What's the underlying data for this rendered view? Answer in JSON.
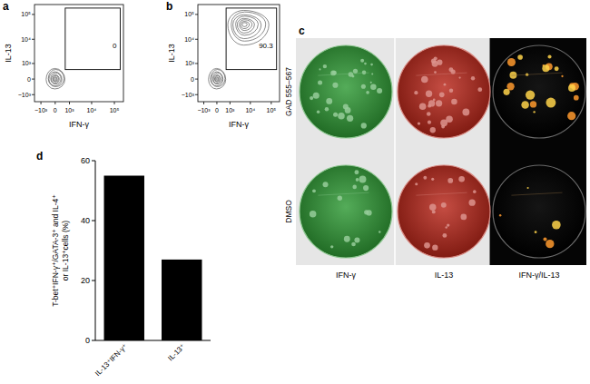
{
  "chart_data": [
    {
      "type": "contour",
      "title": "a",
      "xlabel": "IFN-γ",
      "ylabel": "IL-13",
      "xlim": [
        -2000,
        250000
      ],
      "ylim": [
        -2000,
        250000
      ],
      "xticks": [
        {
          "value": -1000,
          "label": "−10³"
        },
        0,
        {
          "value": 1000,
          "label": "10³"
        },
        {
          "value": 10000,
          "label": "10⁴"
        },
        {
          "value": 100000,
          "label": "10⁵"
        }
      ],
      "yticks": [
        {
          "value": -1000,
          "label": "−10³"
        },
        0,
        {
          "value": 1000,
          "label": "10³"
        },
        {
          "value": 10000,
          "label": "10⁴"
        },
        {
          "value": 100000,
          "label": "10⁵"
        }
      ],
      "populations": [
        {
          "x": 0,
          "y": 0,
          "x_range": [
            -500,
            600
          ],
          "y_range": [
            -500,
            600
          ]
        }
      ],
      "gate": {
        "x": [
          600,
          180000
        ],
        "y": [
          500,
          180000
        ],
        "value": 0
      }
    },
    {
      "type": "contour",
      "title": "b",
      "xlabel": "IFN-γ",
      "ylabel": "IL-13",
      "xlim": [
        -2000,
        250000
      ],
      "ylim": [
        -2000,
        250000
      ],
      "xticks": [
        {
          "value": -1000,
          "label": "−10³"
        },
        0,
        {
          "value": 1000,
          "label": "10³"
        },
        {
          "value": 10000,
          "label": "10⁴"
        },
        {
          "value": 100000,
          "label": "10⁵"
        }
      ],
      "yticks": [
        {
          "value": -1000,
          "label": "−10³"
        },
        0,
        {
          "value": 1000,
          "label": "10³"
        },
        {
          "value": 10000,
          "label": "10⁴"
        },
        {
          "value": 100000,
          "label": "10⁵"
        }
      ],
      "populations": [
        {
          "x": 5000,
          "y": 40000,
          "x_range": [
            800,
            80000
          ],
          "y_range": [
            6000,
            150000
          ]
        },
        {
          "x": 0,
          "y": 0,
          "x_range": [
            -500,
            600
          ],
          "y_range": [
            -500,
            600
          ]
        }
      ],
      "gate": {
        "x": [
          600,
          180000
        ],
        "y": [
          500,
          180000
        ],
        "value": 90.3
      }
    },
    {
      "type": "bar",
      "title": "d",
      "ylabel": [
        "T-bet⁺IFN-γ⁺/GATA-3⁺ and IL-4⁺",
        "or IL-13⁺cells (%)"
      ],
      "categories": [
        "IL-13⁺IFN-γ⁺",
        "IL-13⁺"
      ],
      "values": [
        55,
        27
      ],
      "color": "#000000",
      "ylim": [
        0,
        60
      ],
      "yticks": [
        0,
        20,
        40,
        60
      ]
    }
  ],
  "image_panel": {
    "title": "c",
    "rows": [
      "GAD 555–567",
      "DMSO"
    ],
    "columns": [
      {
        "label": "IFN-γ",
        "color": "#2f9a35"
      },
      {
        "label": "IL-13",
        "color": "#b8261a"
      },
      {
        "label": "IFN-γ/IL-13",
        "color": "#000000"
      }
    ]
  }
}
